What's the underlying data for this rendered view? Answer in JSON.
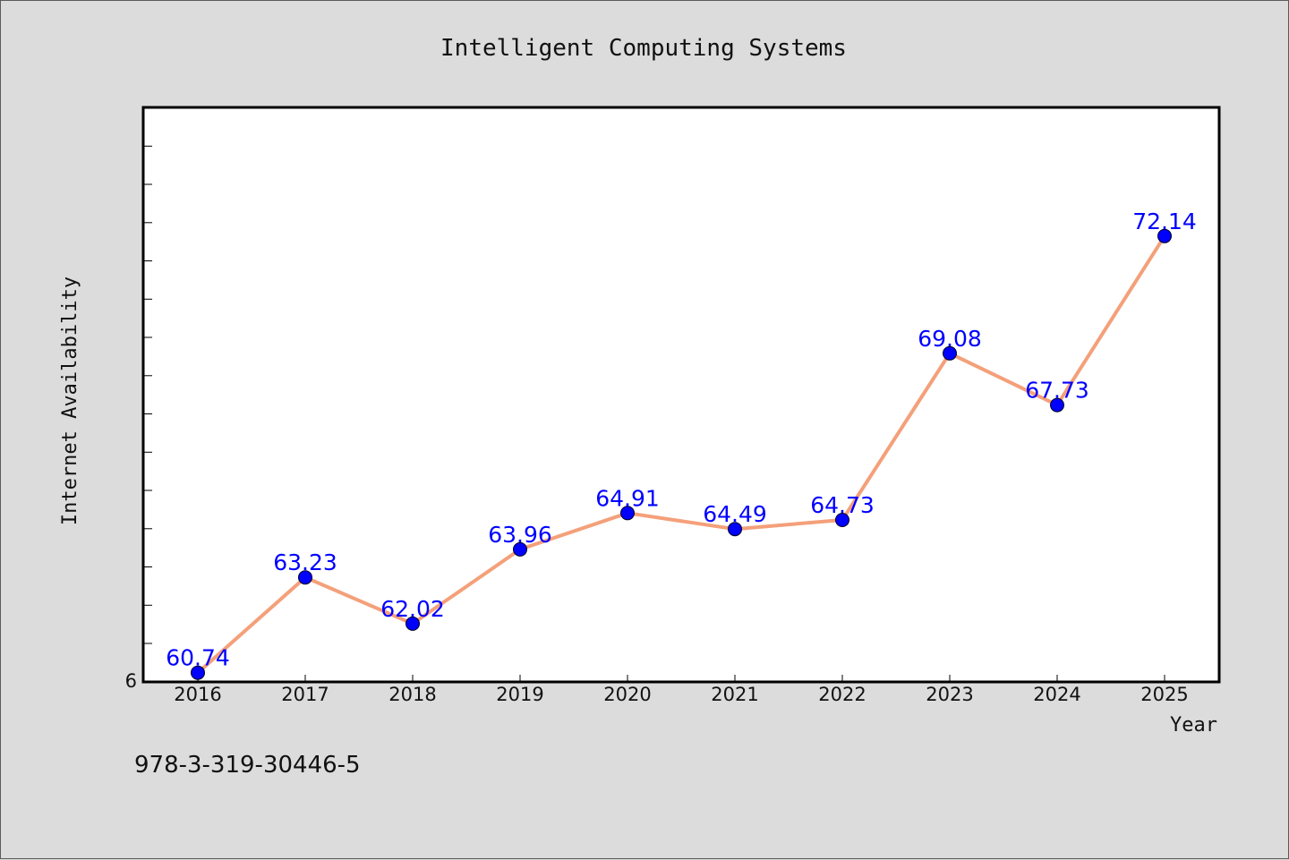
{
  "footer_text": "978-3-319-30446-5",
  "chart_data": {
    "type": "line",
    "title": "Intelligent Computing Systems",
    "xlabel": "Year",
    "ylabel": "Internet Availability",
    "x": [
      "2016",
      "2017",
      "2018",
      "2019",
      "2020",
      "2021",
      "2022",
      "2023",
      "2024",
      "2025"
    ],
    "series": [
      {
        "values": [
          60.74,
          63.23,
          62.02,
          63.96,
          64.91,
          64.49,
          64.73,
          69.08,
          67.73,
          72.14
        ],
        "data_labels": [
          "60.74",
          "63.23",
          "62.02",
          "63.96",
          "64.91",
          "64.49",
          "64.73",
          "69.08",
          "67.73",
          "72.14"
        ],
        "line_color": "#f4a07a",
        "marker_color": "#0000ff"
      }
    ],
    "y_tick_labels": [
      "6"
    ],
    "ylim": [
      60.5,
      75.5
    ],
    "grid": false,
    "legend": "none"
  }
}
